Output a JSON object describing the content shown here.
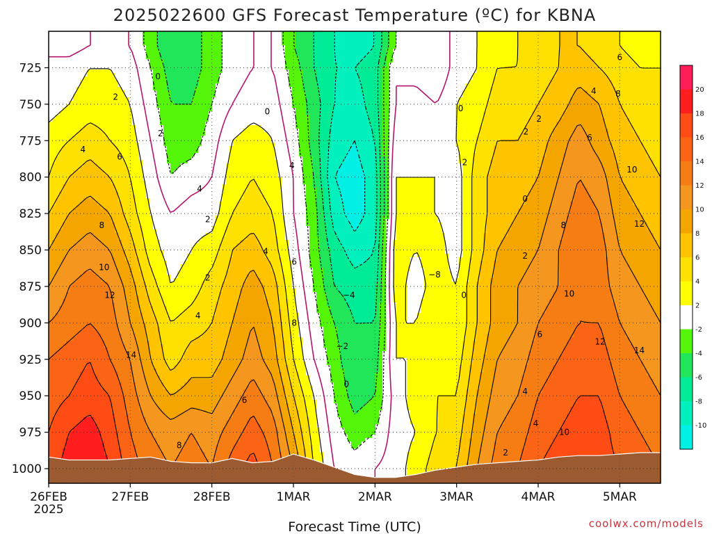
{
  "chart_data": {
    "type": "heatmap",
    "title": "2025022600 GFS Forecast Temperature (ºC) for KBNA",
    "xlabel": "Forecast Time (UTC)",
    "ylabel": "",
    "credit": "coolwx.com/models",
    "y_axis": {
      "ticks": [
        725,
        750,
        775,
        800,
        825,
        850,
        875,
        900,
        925,
        950,
        975,
        1000
      ],
      "range": [
        700,
        1010
      ],
      "inverted": true
    },
    "x_axis": {
      "ticks": [
        "26FEB",
        "27FEB",
        "28FEB",
        "1MAR",
        "2MAR",
        "3MAR",
        "4MAR",
        "5MAR"
      ],
      "first_tick_sublabel": "2025",
      "range_days": [
        0,
        7.5
      ]
    },
    "grid": true,
    "colorbar": {
      "ticks": [
        20,
        18,
        16,
        14,
        12,
        10,
        8,
        6,
        4,
        2,
        -2,
        -4,
        -6,
        -8,
        -10
      ],
      "bands": [
        {
          "range": [
            20,
            22
          ],
          "color": "#ff1e5a"
        },
        {
          "range": [
            18,
            20
          ],
          "color": "#ff1e1e"
        },
        {
          "range": [
            16,
            18
          ],
          "color": "#ff4b14"
        },
        {
          "range": [
            14,
            16
          ],
          "color": "#fa6414"
        },
        {
          "range": [
            12,
            14
          ],
          "color": "#f57d14"
        },
        {
          "range": [
            10,
            12
          ],
          "color": "#f5961e"
        },
        {
          "range": [
            8,
            10
          ],
          "color": "#f5a500"
        },
        {
          "range": [
            6,
            8
          ],
          "color": "#ffc300"
        },
        {
          "range": [
            4,
            6
          ],
          "color": "#ffe100"
        },
        {
          "range": [
            2,
            4
          ],
          "color": "#ffff00"
        },
        {
          "range": [
            -2,
            2
          ],
          "color": "#ffffff"
        },
        {
          "range": [
            -4,
            -2
          ],
          "color": "#55f50a"
        },
        {
          "range": [
            -6,
            -4
          ],
          "color": "#22e65a"
        },
        {
          "range": [
            -8,
            -6
          ],
          "color": "#00eb96"
        },
        {
          "range": [
            -10,
            -8
          ],
          "color": "#00f0be"
        },
        {
          "range": [
            -12,
            -10
          ],
          "color": "#00f0e6"
        }
      ]
    },
    "time_columns": [
      0,
      0.25,
      0.5,
      0.75,
      1,
      1.25,
      1.5,
      1.75,
      2,
      2.25,
      2.5,
      2.75,
      3,
      3.25,
      3.5,
      3.75,
      4,
      4.25,
      4.5,
      4.75,
      5,
      5.25,
      5.5,
      5.75,
      6,
      6.25,
      6.5,
      6.75,
      7,
      7.25,
      7.5
    ],
    "levels": [
      710,
      725,
      750,
      775,
      800,
      825,
      850,
      875,
      900,
      925,
      950,
      975,
      1000
    ],
    "temperature_grid": [
      [
        -1,
        1,
        1,
        3,
        4,
        6,
        8,
        10,
        12,
        14,
        15,
        16,
        17
      ],
      [
        -1,
        1,
        2,
        4,
        6,
        8,
        10,
        12,
        13,
        15,
        16,
        18,
        19
      ],
      [
        0,
        2,
        3,
        5,
        7,
        9,
        11,
        13,
        14,
        16,
        17,
        19,
        20
      ],
      [
        0,
        2,
        3,
        4,
        6,
        8,
        10,
        12,
        13,
        14,
        16,
        17,
        18
      ],
      [
        0,
        1,
        2,
        3,
        4,
        5,
        7,
        9,
        10,
        12,
        13,
        14,
        15
      ],
      [
        -3,
        -2,
        -1,
        0,
        1,
        2,
        3,
        5,
        7,
        8,
        10,
        12,
        13
      ],
      [
        -6,
        -5,
        -4,
        -3,
        -2,
        0,
        1,
        2,
        4,
        5,
        8,
        11,
        12
      ],
      [
        -5,
        -5,
        -4,
        -3,
        -1,
        1,
        2,
        3,
        5,
        7,
        9,
        12,
        13
      ],
      [
        -3,
        -3,
        -2,
        -1,
        0,
        1,
        3,
        5,
        6,
        7,
        9,
        11,
        12
      ],
      [
        -1,
        -1,
        0,
        2,
        3,
        4,
        6,
        7,
        8,
        9,
        11,
        13,
        15
      ],
      [
        0,
        0,
        1,
        3,
        4,
        5,
        7,
        9,
        10,
        11,
        13,
        15,
        17
      ],
      [
        0,
        0,
        1,
        2,
        3,
        4,
        5,
        7,
        8,
        9,
        11,
        13,
        14
      ],
      [
        -4,
        -3,
        -2,
        -1,
        0,
        0,
        1,
        2,
        3,
        4,
        6,
        8,
        10
      ],
      [
        -6,
        -6,
        -5,
        -5,
        -4,
        -3,
        -3,
        -2,
        -1,
        0,
        2,
        3,
        4
      ],
      [
        -8,
        -8,
        -8,
        -9,
        -10,
        -9,
        -7,
        -6,
        -4,
        -3,
        -2,
        -1,
        0
      ],
      [
        -9,
        -8,
        -9,
        -10,
        -11,
        -11,
        -9,
        -7,
        -6,
        -6,
        -5,
        -3,
        -1
      ],
      [
        -8,
        -7,
        -7,
        -8,
        -9,
        -9,
        -8,
        -7,
        -6,
        -5,
        -4,
        -2,
        0
      ],
      [
        -2,
        0,
        0,
        1,
        2,
        2,
        3,
        3,
        2,
        2,
        1,
        1,
        1
      ],
      [
        -1,
        -1,
        1,
        2,
        2,
        2,
        2,
        1,
        2,
        2,
        3,
        2,
        3
      ],
      [
        -2,
        -2,
        0,
        1,
        2,
        2,
        3,
        3,
        4,
        4,
        4,
        4,
        5
      ],
      [
        1,
        1,
        2,
        2,
        1,
        1,
        1,
        2,
        2,
        3,
        4,
        5,
        6
      ],
      [
        2,
        2,
        3,
        4,
        5,
        5,
        5,
        6,
        6,
        7,
        8,
        9,
        10
      ],
      [
        3,
        4,
        5,
        6,
        7,
        7,
        8,
        9,
        9,
        10,
        11,
        12,
        13
      ],
      [
        4,
        4,
        5,
        6,
        7,
        8,
        9,
        10,
        10,
        11,
        12,
        13,
        14
      ],
      [
        5,
        5,
        6,
        7,
        8,
        9,
        10,
        11,
        12,
        13,
        14,
        15,
        16
      ],
      [
        6,
        6,
        7,
        9,
        10,
        11,
        12,
        12,
        13,
        14,
        15,
        16,
        17
      ],
      [
        6,
        7,
        9,
        11,
        12,
        13,
        14,
        14,
        14,
        15,
        16,
        17,
        18
      ],
      [
        5,
        6,
        8,
        9,
        11,
        12,
        13,
        13,
        14,
        15,
        16,
        17,
        17
      ],
      [
        4,
        5,
        6,
        7,
        8,
        9,
        10,
        11,
        12,
        13,
        14,
        15,
        16
      ],
      [
        3,
        4,
        5,
        6,
        7,
        8,
        9,
        10,
        11,
        12,
        13,
        14,
        15
      ],
      [
        3,
        4,
        5,
        5,
        6,
        7,
        8,
        9,
        10,
        11,
        12,
        13,
        14
      ]
    ],
    "surface_pressure": [
      992,
      994,
      994,
      994,
      993,
      992,
      995,
      996,
      996,
      993,
      996,
      995,
      990,
      994,
      999,
      1004,
      1006,
      1006,
      1004,
      1001,
      999,
      997,
      996,
      995,
      994,
      992,
      991,
      991,
      990,
      989,
      989
    ],
    "contour_labels": [
      {
        "t": 0.82,
        "p": 745,
        "text": "2"
      },
      {
        "t": 1.34,
        "p": 731,
        "text": "0"
      },
      {
        "t": 0.42,
        "p": 781,
        "text": "4"
      },
      {
        "t": 0.87,
        "p": 786,
        "text": "6"
      },
      {
        "t": 0.65,
        "p": 833,
        "text": "8"
      },
      {
        "t": 0.68,
        "p": 862,
        "text": "10"
      },
      {
        "t": 0.75,
        "p": 881,
        "text": "12"
      },
      {
        "t": 1.01,
        "p": 922,
        "text": "14"
      },
      {
        "t": 1.37,
        "p": 770,
        "text": "2"
      },
      {
        "t": 1.85,
        "p": 808,
        "text": "4"
      },
      {
        "t": 1.95,
        "p": 829,
        "text": "2"
      },
      {
        "t": 1.95,
        "p": 869,
        "text": "2"
      },
      {
        "t": 1.83,
        "p": 895,
        "text": "4"
      },
      {
        "t": 1.6,
        "p": 984,
        "text": "8"
      },
      {
        "t": 2.68,
        "p": 755,
        "text": "0"
      },
      {
        "t": 2.98,
        "p": 792,
        "text": "4"
      },
      {
        "t": 2.66,
        "p": 851,
        "text": "4"
      },
      {
        "t": 3.01,
        "p": 858,
        "text": "6"
      },
      {
        "t": 3.01,
        "p": 900,
        "text": "8"
      },
      {
        "t": 2.4,
        "p": 953,
        "text": "6"
      },
      {
        "t": 3.68,
        "p": 881,
        "text": "−4"
      },
      {
        "t": 3.6,
        "p": 916,
        "text": "−2"
      },
      {
        "t": 3.65,
        "p": 942,
        "text": "0"
      },
      {
        "t": 4.73,
        "p": 867,
        "text": "−8"
      },
      {
        "t": 5.05,
        "p": 753,
        "text": "0"
      },
      {
        "t": 5.09,
        "p": 881,
        "text": "0"
      },
      {
        "t": 5.1,
        "p": 790,
        "text": "2"
      },
      {
        "t": 5.6,
        "p": 989,
        "text": "2"
      },
      {
        "t": 5.85,
        "p": 769,
        "text": "2"
      },
      {
        "t": 6.01,
        "p": 760,
        "text": "2"
      },
      {
        "t": 5.84,
        "p": 815,
        "text": "0"
      },
      {
        "t": 5.84,
        "p": 854,
        "text": "2"
      },
      {
        "t": 5.84,
        "p": 947,
        "text": "4"
      },
      {
        "t": 5.97,
        "p": 969,
        "text": "4"
      },
      {
        "t": 6.02,
        "p": 908,
        "text": "6"
      },
      {
        "t": 6.31,
        "p": 833,
        "text": "8"
      },
      {
        "t": 6.38,
        "p": 880,
        "text": "10"
      },
      {
        "t": 6.32,
        "p": 975,
        "text": "10"
      },
      {
        "t": 7.0,
        "p": 718,
        "text": "6"
      },
      {
        "t": 6.68,
        "p": 741,
        "text": "4"
      },
      {
        "t": 6.98,
        "p": 743,
        "text": "8"
      },
      {
        "t": 6.63,
        "p": 773,
        "text": "6"
      },
      {
        "t": 7.15,
        "p": 795,
        "text": "10"
      },
      {
        "t": 7.24,
        "p": 832,
        "text": "12"
      },
      {
        "t": 6.76,
        "p": 913,
        "text": "12"
      },
      {
        "t": 7.24,
        "p": 919,
        "text": "14"
      }
    ]
  }
}
